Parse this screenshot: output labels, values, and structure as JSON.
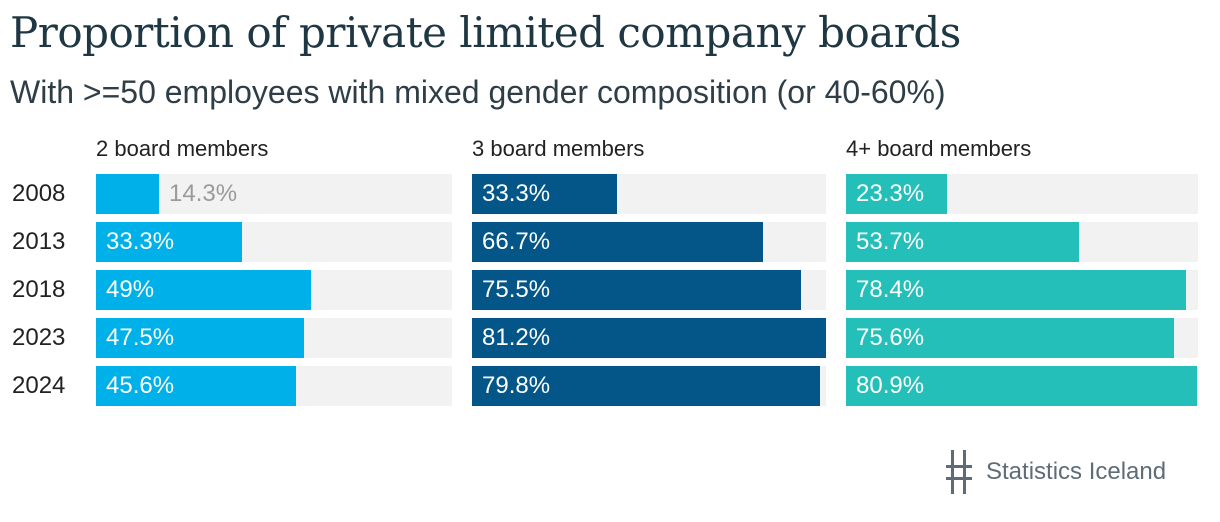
{
  "header": {
    "title": "Proportion of private limited company boards",
    "subtitle": "With >=50 employees with mixed gender composition (or 40-60%)"
  },
  "footer": {
    "brand": "Statistics Iceland"
  },
  "colors": {
    "panel1": "#00b0e8",
    "panel2": "#045688",
    "panel3": "#25bfb9",
    "track": "#f2f2f2"
  },
  "chart_data": {
    "type": "bar",
    "orientation": "horizontal",
    "categories": [
      "2008",
      "2013",
      "2018",
      "2023",
      "2024"
    ],
    "xlim": [
      0,
      81.2
    ],
    "panels": [
      {
        "name": "2 board members",
        "labels": [
          "14.3%",
          "33.3%",
          "49%",
          "47.5%",
          "45.6%"
        ],
        "values": [
          14.3,
          33.3,
          49,
          47.5,
          45.6
        ]
      },
      {
        "name": "3 board members",
        "labels": [
          "33.3%",
          "66.7%",
          "75.5%",
          "81.2%",
          "79.8%"
        ],
        "values": [
          33.3,
          66.7,
          75.5,
          81.2,
          79.8
        ]
      },
      {
        "name": "4+ board members",
        "labels": [
          "23.3%",
          "53.7%",
          "78.4%",
          "75.6%",
          "80.9%"
        ],
        "values": [
          23.3,
          53.7,
          78.4,
          75.6,
          80.9
        ]
      }
    ]
  }
}
